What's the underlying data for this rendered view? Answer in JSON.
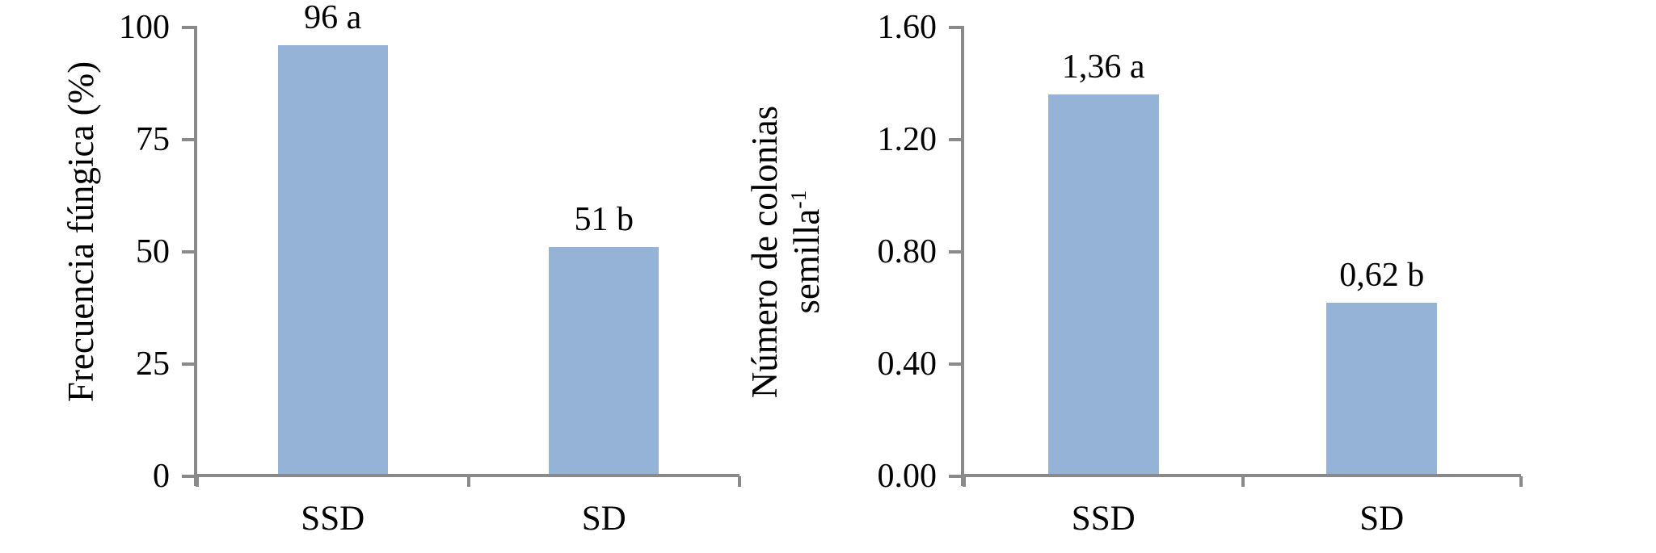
{
  "figure": {
    "background": "#ffffff",
    "bar_color": "#95B3D7",
    "axis_color": "#8A8A8A",
    "text_color": "#000000"
  },
  "chart_data": [
    {
      "type": "bar",
      "title": "",
      "categories": [
        "SSD",
        "SD"
      ],
      "values": [
        96,
        51
      ],
      "bar_labels": [
        "96 a",
        "51 b"
      ],
      "ylabel": "Frecuencia fúngica (%)",
      "xlabel": "",
      "ylim": [
        0,
        100
      ],
      "yticks": [
        0,
        25,
        50,
        75,
        100
      ],
      "ytick_labels": [
        "0",
        "25",
        "50",
        "75",
        "100"
      ],
      "grid": false,
      "legend_position": "none",
      "bar_color": "#95B3D7",
      "axis_color": "#8A8A8A"
    },
    {
      "type": "bar",
      "title": "",
      "categories": [
        "SSD",
        "SD"
      ],
      "values": [
        1.36,
        0.62
      ],
      "bar_labels": [
        "1,36 a",
        "0,62 b"
      ],
      "ylabel_lines": {
        "line1": "Número de colonias",
        "line2_base": "semilla",
        "line2_sup": "-1"
      },
      "xlabel": "",
      "ylim": [
        0,
        1.6
      ],
      "yticks": [
        0.0,
        0.4,
        0.8,
        1.2,
        1.6
      ],
      "ytick_labels": [
        "0.00",
        "0.40",
        "0.80",
        "1.20",
        "1.60"
      ],
      "grid": false,
      "legend_position": "none",
      "bar_color": "#95B3D7",
      "axis_color": "#8A8A8A"
    }
  ]
}
